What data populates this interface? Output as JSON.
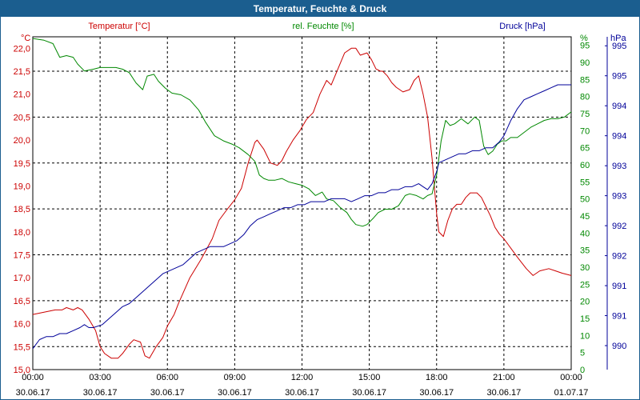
{
  "window": {
    "title": "Temperatur, Feuchte & Druck"
  },
  "colors": {
    "temperature": "#cc0000",
    "humidity": "#008800",
    "pressure": "#000099",
    "titlebar": "#1b5e8f",
    "axis_text": "#000000"
  },
  "chart_data": {
    "type": "line",
    "title": "Temperatur, Feuchte & Druck",
    "grid": true,
    "x_ticks": [
      {
        "time": "00:00",
        "date": "30.06.17"
      },
      {
        "time": "03:00",
        "date": "30.06.17"
      },
      {
        "time": "06:00",
        "date": "30.06.17"
      },
      {
        "time": "09:00",
        "date": "30.06.17"
      },
      {
        "time": "12:00",
        "date": "30.06.17"
      },
      {
        "time": "15:00",
        "date": "30.06.17"
      },
      {
        "time": "18:00",
        "date": "30.06.17"
      },
      {
        "time": "21:00",
        "date": "30.06.17"
      },
      {
        "time": "00:00",
        "date": "01.07.17"
      }
    ],
    "axes": {
      "temperature": {
        "label": "Temperatur [°C]",
        "unit": "°C",
        "range": [
          15.0,
          22.25
        ],
        "ticks": [
          "15,0",
          "15,5",
          "16,0",
          "16,5",
          "17,0",
          "17,5",
          "18,0",
          "18,5",
          "19,0",
          "19,5",
          "20,0",
          "20,5",
          "21,0",
          "21,5",
          "22,0"
        ]
      },
      "humidity": {
        "label": "rel. Feuchte [%]",
        "unit": "%",
        "range": [
          0,
          97.5
        ],
        "ticks": [
          "0",
          "5",
          "10",
          "15",
          "20",
          "25",
          "30",
          "35",
          "40",
          "45",
          "50",
          "55",
          "60",
          "65",
          "70",
          "75",
          "80",
          "85",
          "90",
          "95"
        ]
      },
      "pressure": {
        "label": "Druck [hPa]",
        "unit": "hPa",
        "range": [
          989.6,
          995.15
        ],
        "ticks": [
          "990",
          "991",
          "991",
          "992",
          "992",
          "993",
          "993",
          "994",
          "994",
          "995",
          "995"
        ]
      }
    },
    "series": [
      {
        "name": "Temperatur [°C]",
        "axis": "temperature",
        "x": [
          0,
          0.5,
          1,
          1.3,
          1.5,
          1.8,
          2,
          2.2,
          2.5,
          2.8,
          3,
          3.2,
          3.5,
          3.8,
          4,
          4.3,
          4.5,
          4.8,
          5,
          5.2,
          5.5,
          5.8,
          6,
          6.3,
          6.5,
          7,
          7.5,
          8,
          8.3,
          8.6,
          9,
          9.3,
          9.6,
          9.9,
          10,
          10.3,
          10.6,
          10.9,
          11.1,
          11.3,
          11.6,
          11.9,
          12.2,
          12.5,
          12.8,
          13.1,
          13.3,
          13.6,
          13.9,
          14.2,
          14.4,
          14.6,
          14.9,
          15.1,
          15.3,
          15.5,
          15.6,
          15.8,
          16,
          16.2,
          16.5,
          16.8,
          17,
          17.2,
          17.4,
          17.6,
          17.8,
          17.9,
          18,
          18.1,
          18.3,
          18.5,
          18.7,
          18.9,
          19.1,
          19.3,
          19.5,
          19.8,
          20,
          20.2,
          20.4,
          20.6,
          20.8,
          21,
          21.3,
          21.6,
          22,
          22.3,
          22.6,
          23,
          23.3,
          23.6,
          24
        ],
        "y": [
          16.2,
          16.25,
          16.3,
          16.3,
          16.35,
          16.3,
          16.35,
          16.3,
          16.1,
          15.85,
          15.5,
          15.35,
          15.25,
          15.25,
          15.35,
          15.55,
          15.65,
          15.6,
          15.3,
          15.25,
          15.5,
          15.7,
          15.95,
          16.2,
          16.45,
          17.0,
          17.4,
          17.85,
          18.25,
          18.45,
          18.7,
          18.95,
          19.5,
          19.95,
          20.0,
          19.8,
          19.5,
          19.45,
          19.55,
          19.75,
          20.0,
          20.2,
          20.45,
          20.6,
          21.0,
          21.3,
          21.2,
          21.55,
          21.9,
          22.0,
          22.0,
          21.85,
          21.9,
          21.75,
          21.55,
          21.5,
          21.5,
          21.4,
          21.25,
          21.15,
          21.05,
          21.1,
          21.3,
          21.4,
          21.0,
          20.5,
          19.6,
          19.0,
          18.4,
          18.0,
          17.9,
          18.25,
          18.5,
          18.6,
          18.6,
          18.75,
          18.85,
          18.85,
          18.75,
          18.55,
          18.35,
          18.1,
          17.95,
          17.85,
          17.65,
          17.45,
          17.2,
          17.05,
          17.15,
          17.2,
          17.15,
          17.1,
          17.05
        ]
      },
      {
        "name": "rel. Feuchte [%]",
        "axis": "humidity",
        "x": [
          0,
          0.5,
          0.9,
          1.2,
          1.5,
          1.8,
          2,
          2.3,
          2.7,
          3,
          3.3,
          3.7,
          4,
          4.3,
          4.6,
          4.9,
          5.1,
          5.4,
          5.6,
          5.9,
          6.2,
          6.6,
          7,
          7.4,
          7.7,
          8.1,
          8.5,
          8.9,
          9.2,
          9.6,
          9.9,
          10.1,
          10.3,
          10.5,
          10.8,
          11.1,
          11.4,
          11.7,
          12,
          12.3,
          12.6,
          12.9,
          13.1,
          13.4,
          13.7,
          14,
          14.2,
          14.4,
          14.7,
          14.9,
          15.2,
          15.4,
          15.7,
          16,
          16.3,
          16.6,
          16.8,
          17.1,
          17.4,
          17.6,
          17.8,
          18,
          18.2,
          18.4,
          18.6,
          18.8,
          19.1,
          19.4,
          19.7,
          19.9,
          20.1,
          20.3,
          20.5,
          20.7,
          20.9,
          21.1,
          21.3,
          21.6,
          21.9,
          22.2,
          22.5,
          22.8,
          23.1,
          23.4,
          23.7,
          24
        ],
        "y": [
          97,
          96.5,
          95.5,
          91.5,
          92,
          91.5,
          89.5,
          87.5,
          88,
          88.5,
          88.5,
          88.5,
          88,
          87,
          84,
          82,
          86,
          86.5,
          84.5,
          82.5,
          81,
          80.5,
          79,
          76,
          72.5,
          68.5,
          67,
          66,
          65,
          63,
          61,
          57,
          56,
          55.5,
          55.5,
          56,
          55,
          54.5,
          54,
          53,
          51,
          52,
          50,
          49.5,
          47.5,
          46,
          44,
          42.5,
          42,
          42.5,
          44.5,
          46,
          47,
          47,
          48,
          51,
          51.5,
          51,
          50,
          51,
          51.5,
          57,
          67,
          73,
          71.5,
          72,
          73.5,
          72,
          74,
          73,
          65.5,
          63,
          64,
          66,
          67,
          67,
          68,
          68,
          69.5,
          71,
          72,
          73,
          73.5,
          73.5,
          74,
          75.5
        ]
      },
      {
        "name": "Druck [hPa]",
        "axis": "pressure",
        "x": [
          0,
          0.3,
          0.6,
          0.9,
          1.2,
          1.5,
          1.8,
          2.1,
          2.3,
          2.5,
          2.7,
          3.1,
          3.4,
          3.7,
          4,
          4.3,
          4.6,
          4.9,
          5.2,
          5.5,
          5.8,
          6.1,
          6.4,
          6.7,
          7,
          7.3,
          7.6,
          7.9,
          8.2,
          8.5,
          8.8,
          9.1,
          9.4,
          9.7,
          10,
          10.3,
          10.6,
          10.9,
          11.2,
          11.5,
          11.8,
          12.1,
          12.4,
          12.7,
          13,
          13.3,
          13.6,
          13.9,
          14.2,
          14.5,
          14.8,
          15.1,
          15.4,
          15.7,
          16,
          16.3,
          16.6,
          16.9,
          17.2,
          17.4,
          17.6,
          17.8,
          17.9,
          18,
          18.1,
          18.4,
          18.7,
          19,
          19.3,
          19.6,
          19.9,
          20.2,
          20.5,
          20.8,
          21,
          21.3,
          21.6,
          21.9,
          22.2,
          22.5,
          22.8,
          23.1,
          23.4,
          23.7,
          24
        ],
        "y": [
          989.95,
          990.1,
          990.15,
          990.15,
          990.2,
          990.2,
          990.25,
          990.3,
          990.35,
          990.3,
          990.3,
          990.35,
          990.45,
          990.55,
          990.65,
          990.7,
          990.8,
          990.9,
          991.0,
          991.1,
          991.2,
          991.25,
          991.3,
          991.35,
          991.45,
          991.55,
          991.6,
          991.65,
          991.65,
          991.65,
          991.7,
          991.75,
          991.85,
          992.0,
          992.1,
          992.15,
          992.2,
          992.25,
          992.3,
          992.3,
          992.35,
          992.35,
          992.4,
          992.4,
          992.4,
          992.45,
          992.45,
          992.45,
          992.4,
          992.45,
          992.5,
          992.5,
          992.55,
          992.55,
          992.6,
          992.6,
          992.65,
          992.65,
          992.7,
          992.65,
          992.6,
          992.7,
          992.8,
          992.9,
          993.05,
          993.1,
          993.15,
          993.2,
          993.2,
          993.25,
          993.25,
          993.3,
          993.3,
          993.4,
          993.5,
          993.75,
          993.95,
          994.1,
          994.15,
          994.2,
          994.25,
          994.3,
          994.35,
          994.35,
          994.35
        ]
      }
    ]
  }
}
